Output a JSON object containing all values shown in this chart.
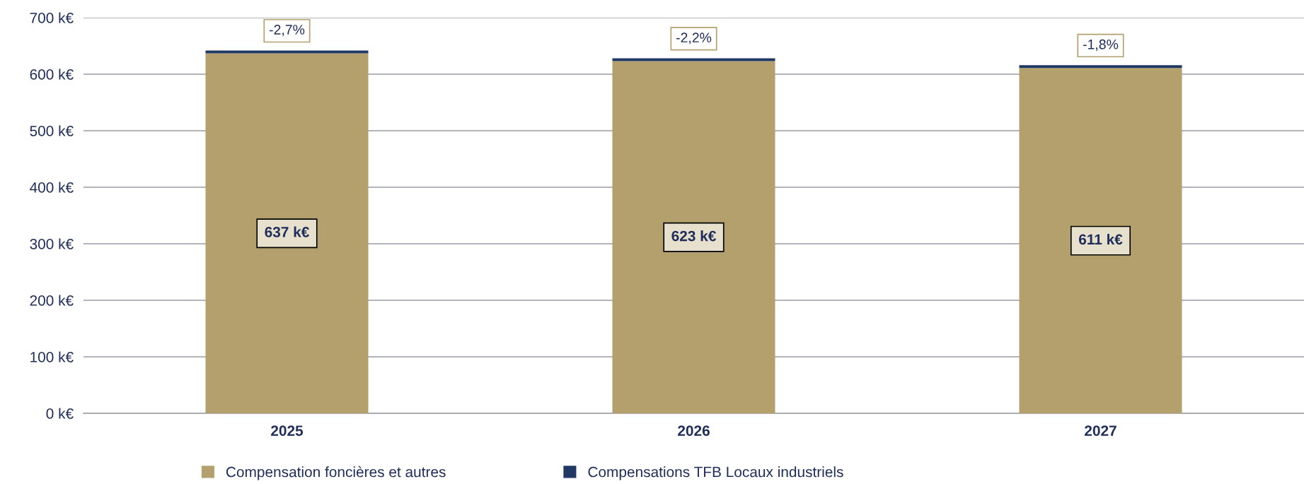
{
  "chart_data": {
    "type": "bar",
    "stacked": true,
    "categories": [
      "2025",
      "2026",
      "2027"
    ],
    "series": [
      {
        "name": "Compensation foncières et autres",
        "color": "#b3a06d",
        "values": [
          637,
          623,
          611
        ],
        "value_labels": [
          "637 k€",
          "623 k€",
          "611 k€"
        ]
      },
      {
        "name": "Compensations TFB Locaux industriels",
        "color": "#1f3864",
        "values": [
          5,
          5,
          5
        ]
      }
    ],
    "annotations": [
      {
        "text": "-2,7%",
        "x": "2025",
        "y": 642
      },
      {
        "text": "-2,2%",
        "x": "2026",
        "y": 628
      },
      {
        "text": "-1,8%",
        "x": "2027",
        "y": 616
      }
    ],
    "ylim": [
      0,
      700
    ],
    "yticks": [
      {
        "value": 0,
        "label": "0 k€"
      },
      {
        "value": 100,
        "label": "100 k€"
      },
      {
        "value": 200,
        "label": "200 k€"
      },
      {
        "value": 300,
        "label": "300 k€"
      },
      {
        "value": 400,
        "label": "400 k€"
      },
      {
        "value": 500,
        "label": "500 k€"
      },
      {
        "value": 600,
        "label": "600 k€"
      },
      {
        "value": 700,
        "label": "700 k€"
      }
    ],
    "grid": "y",
    "legend": "bottom"
  }
}
